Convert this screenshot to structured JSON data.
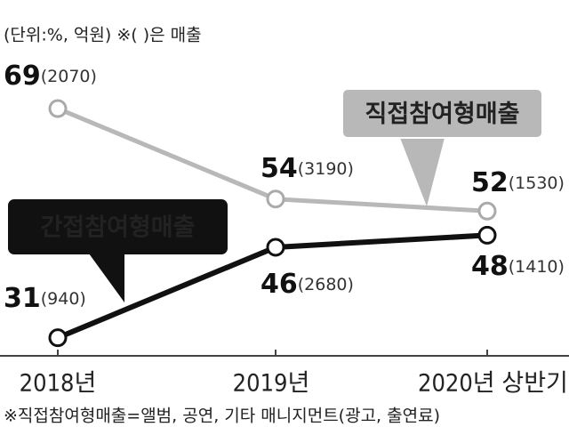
{
  "chart_data": {
    "type": "line",
    "unit_note": "(단위:%, 억원) ※( )은 매출",
    "footnote": "※직접참여형매출=앨범, 공연, 기타 매니지먼트(광고, 출연료)",
    "categories": [
      "2018년",
      "2019년",
      "2020년 상반기"
    ],
    "series": [
      {
        "name": "직접참여형매출",
        "color": "#b8b8b8",
        "values": [
          69,
          54,
          52
        ],
        "sales_labels": [
          "(2070)",
          "(3190)",
          "(1530)"
        ]
      },
      {
        "name": "간접참여형매출",
        "color": "#111111",
        "values": [
          31,
          46,
          48
        ],
        "sales_labels": [
          "(940)",
          "(2680)",
          "(1410)"
        ]
      }
    ],
    "ylim": [
      28,
      87
    ]
  }
}
